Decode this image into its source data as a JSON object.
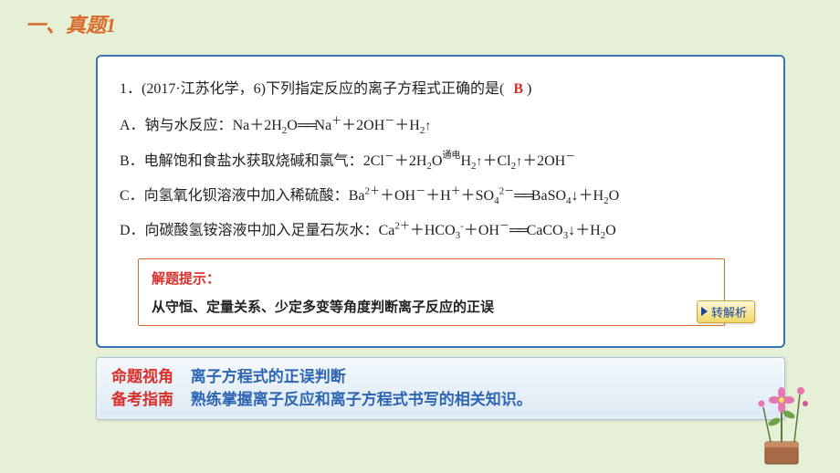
{
  "header": {
    "title": "一、真题1"
  },
  "question": {
    "stem_prefix": "1．(2017·江苏化学，6)下列指定反应的离子方程式正确的是(",
    "stem_suffix": ")",
    "answer": "B",
    "options": {
      "A": {
        "label": "A．钠与水反应：",
        "formula": "Na＋2H<sub>2</sub>O<span class='equals'>══</span>Na<sup>＋</sup>＋2OH<sup>－</sup>＋H<sub>2</sub><span class='arrow-up'>↑</span>"
      },
      "B": {
        "label": "B．电解饱和食盐水获取烧碱和氯气：",
        "formula": "2Cl<sup>－</sup>＋2H<sub>2</sub>O<span style='position:relative;font-size:10px;top:-8px;'>通电</span>H<sub>2</sub><span class='arrow-up'>↑</span>＋Cl<sub>2</sub><span class='arrow-up'>↑</span>＋2OH<sup>－</sup>"
      },
      "C": {
        "label": "C．向氢氧化钡溶液中加入稀硫酸：",
        "formula": "Ba<sup>2＋</sup>＋OH<sup>－</sup>＋H<sup>＋</sup>＋SO<sub>4</sub><sup>2</sup><sup>－</sup><span class='equals'>══</span>BaSO<sub>4</sub>↓＋H<sub>2</sub>O"
      },
      "D": {
        "label": "D．向碳酸氢铵溶液中加入足量石灰水：",
        "formula": "Ca<sup>2＋</sup>＋HCO<sub>3</sub><sup>-</sup>＋OH<sup>－</sup><span class='equals'>══</span>CaCO<sub>3</sub>↓＋H<sub>2</sub>O"
      }
    }
  },
  "hint": {
    "title": "解题提示：",
    "body": "从守恒、定量关系、少定多变等角度判断离子反应的正误"
  },
  "analysis_button": {
    "label": "转解析"
  },
  "summary": {
    "row1_label": "命题视角",
    "row1_text": "离子方程式的正误判断",
    "row2_label": "备考指南",
    "row2_text": "熟练掌握离子反应和离子方程式书写的相关知识。"
  },
  "colors": {
    "page_bg": "#e5f0d6",
    "box_border": "#3973b8",
    "accent_orange": "#d96c2c",
    "accent_red": "#d9302c",
    "accent_blue": "#2f66b3"
  }
}
